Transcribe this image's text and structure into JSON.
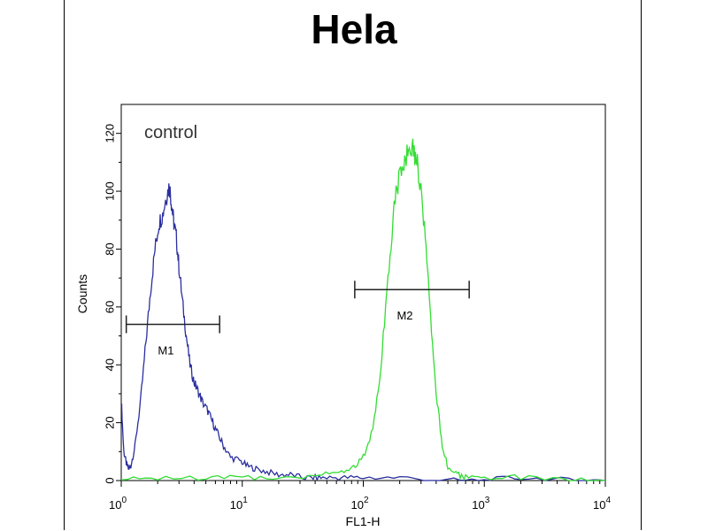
{
  "chart_data": {
    "type": "line",
    "title": "Hela",
    "xlabel": "FL1-H",
    "ylabel": "Counts",
    "x_scale": "log",
    "xlim": [
      1,
      10000
    ],
    "ylim": [
      0,
      130
    ],
    "x_ticks": [
      {
        "value": 1,
        "base": "10",
        "exp": "0"
      },
      {
        "value": 10,
        "base": "10",
        "exp": "1"
      },
      {
        "value": 100,
        "base": "10",
        "exp": "2"
      },
      {
        "value": 1000,
        "base": "10",
        "exp": "3"
      },
      {
        "value": 10000,
        "base": "10",
        "exp": "4"
      }
    ],
    "y_ticks": [
      0,
      20,
      40,
      60,
      80,
      100,
      120
    ],
    "annotation": "control",
    "grid": false,
    "series": [
      {
        "color": "#2b2f9e",
        "x": [
          1.0,
          1.05,
          1.1,
          1.15,
          1.2,
          1.3,
          1.45,
          1.6,
          1.75,
          1.9,
          2.05,
          2.2,
          2.35,
          2.5,
          2.6,
          2.7,
          2.85,
          3.0,
          3.2,
          3.45,
          3.7,
          4.0,
          4.3,
          4.7,
          5.2,
          5.7,
          6.3,
          7.0,
          8.0,
          9.5,
          11,
          13,
          16,
          20,
          25,
          32,
          40,
          50,
          70,
          100,
          200,
          500,
          1000,
          2000,
          5000,
          10000
        ],
        "y": [
          28,
          10,
          6,
          4,
          5,
          12,
          28,
          48,
          66,
          80,
          89,
          92,
          98,
          102,
          96,
          90,
          84,
          74,
          62,
          50,
          40,
          34,
          31,
          27,
          24,
          20,
          16,
          12,
          8,
          7,
          5,
          4,
          3,
          2,
          2,
          1,
          1,
          1,
          1,
          1,
          1,
          0,
          0,
          1,
          0,
          0
        ]
      },
      {
        "color": "#33dd33",
        "x": [
          1.0,
          2,
          5,
          10,
          20,
          40,
          60,
          80,
          100,
          120,
          140,
          160,
          180,
          200,
          220,
          240,
          260,
          280,
          300,
          330,
          360,
          400,
          450,
          500,
          600,
          700,
          1000,
          2000,
          5000,
          10000
        ],
        "y": [
          0,
          1,
          1,
          1,
          1,
          2,
          3,
          4,
          8,
          18,
          40,
          70,
          95,
          106,
          110,
          117,
          114,
          110,
          100,
          80,
          55,
          30,
          12,
          5,
          2,
          1,
          1,
          1,
          0,
          0
        ]
      }
    ],
    "gates": [
      {
        "label": "M1",
        "x_start": 1.1,
        "x_end": 6.5,
        "y": 54
      },
      {
        "label": "M2",
        "x_start": 85,
        "x_end": 750,
        "y": 66
      }
    ]
  }
}
